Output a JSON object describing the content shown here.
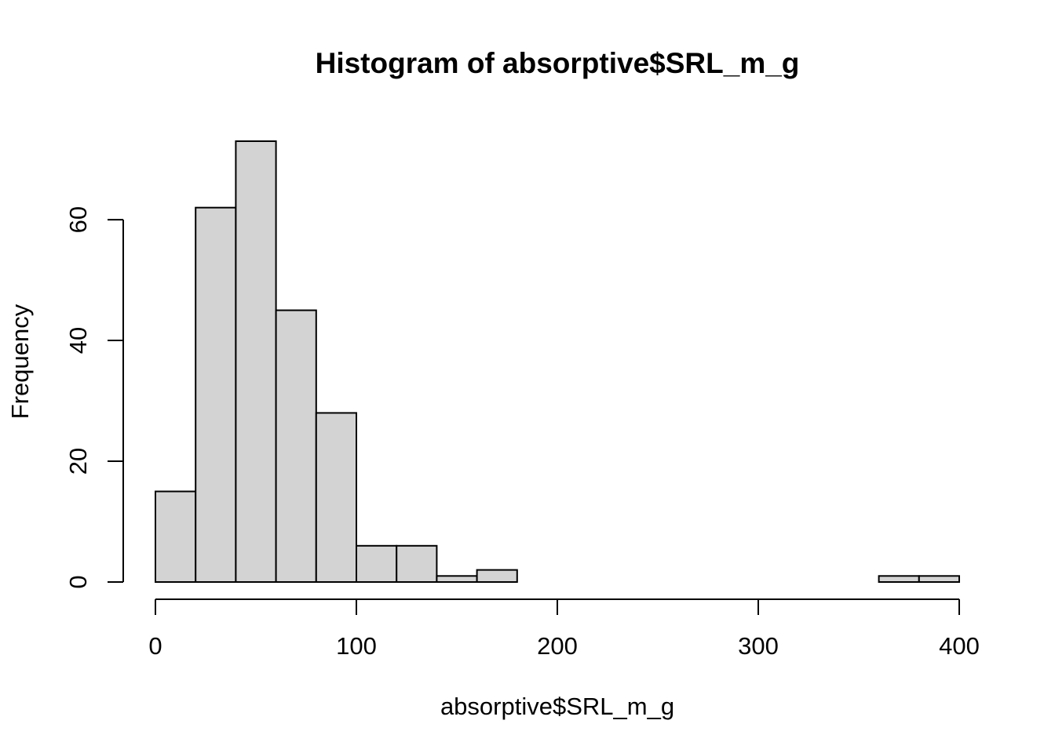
{
  "chart_data": {
    "type": "bar",
    "title": "Histogram of absorptive$SRL_m_g",
    "xlabel": "absorptive$SRL_m_g",
    "ylabel": "Frequency",
    "bins": [
      {
        "from": 0,
        "to": 20,
        "count": 15
      },
      {
        "from": 20,
        "to": 40,
        "count": 62
      },
      {
        "from": 40,
        "to": 60,
        "count": 73
      },
      {
        "from": 60,
        "to": 80,
        "count": 45
      },
      {
        "from": 80,
        "to": 100,
        "count": 28
      },
      {
        "from": 100,
        "to": 120,
        "count": 6
      },
      {
        "from": 120,
        "to": 140,
        "count": 6
      },
      {
        "from": 140,
        "to": 160,
        "count": 1
      },
      {
        "from": 160,
        "to": 180,
        "count": 2
      },
      {
        "from": 180,
        "to": 200,
        "count": 0
      },
      {
        "from": 200,
        "to": 220,
        "count": 0
      },
      {
        "from": 220,
        "to": 240,
        "count": 0
      },
      {
        "from": 240,
        "to": 260,
        "count": 0
      },
      {
        "from": 260,
        "to": 280,
        "count": 0
      },
      {
        "from": 280,
        "to": 300,
        "count": 0
      },
      {
        "from": 300,
        "to": 320,
        "count": 0
      },
      {
        "from": 320,
        "to": 340,
        "count": 0
      },
      {
        "from": 340,
        "to": 360,
        "count": 0
      },
      {
        "from": 360,
        "to": 380,
        "count": 1
      },
      {
        "from": 380,
        "to": 400,
        "count": 1
      }
    ],
    "xticks": [
      0,
      100,
      200,
      300,
      400
    ],
    "yticks": [
      0,
      20,
      40,
      60
    ],
    "xlim": [
      0,
      400
    ],
    "ylim": [
      0,
      73
    ],
    "grid": false,
    "legend": "none"
  }
}
